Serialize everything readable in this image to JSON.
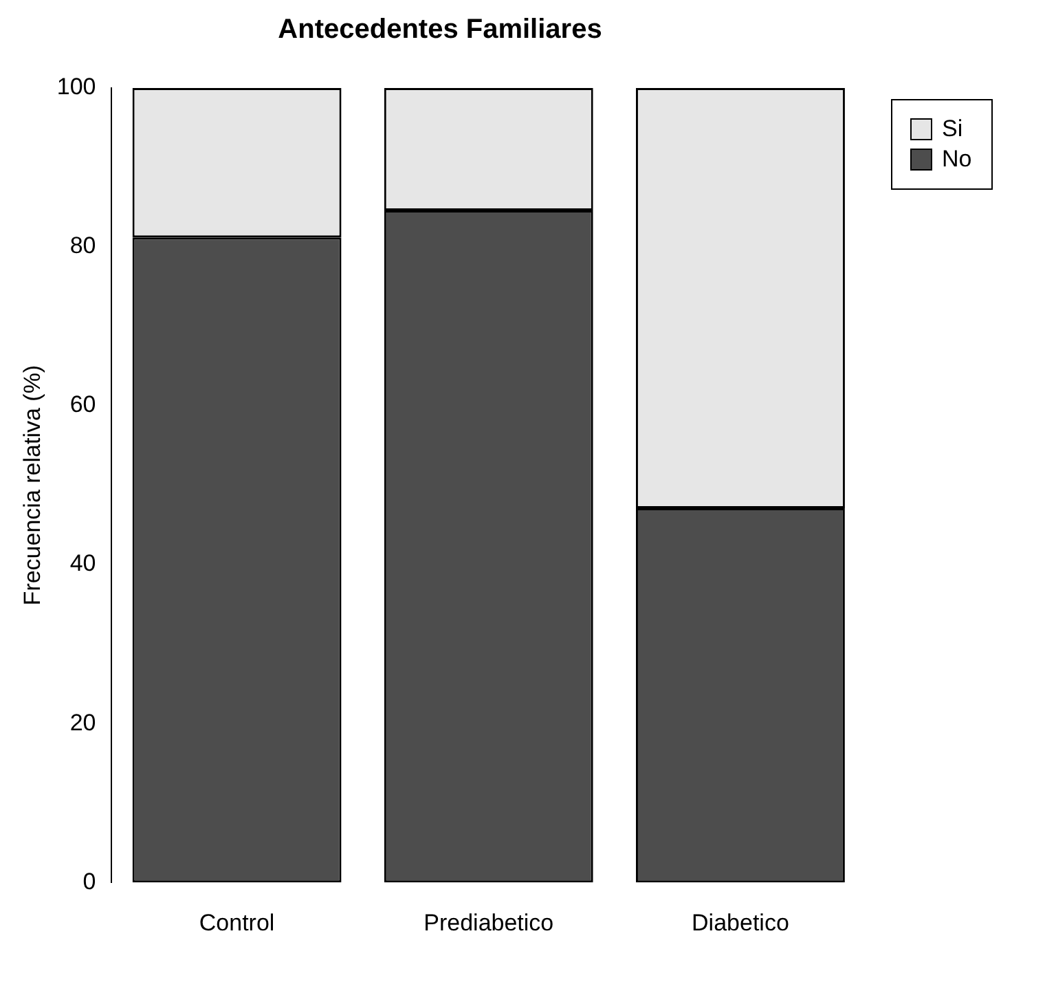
{
  "chart_data": {
    "type": "bar",
    "title": "Antecedentes Familiares",
    "ylabel": "Frecuencia relativa (%)",
    "categories": [
      "Control",
      "Prediabetico",
      "Diabetico"
    ],
    "stacked": true,
    "series": [
      {
        "name": "No",
        "color": "#4d4d4d",
        "values": [
          81.2,
          84.6,
          47.1
        ]
      },
      {
        "name": "Si",
        "color": "#e6e6e6",
        "values": [
          18.8,
          15.4,
          52.9
        ]
      }
    ],
    "ylim": [
      0,
      100
    ],
    "yticks": [
      0,
      20,
      40,
      60,
      80,
      100
    ],
    "grid": false,
    "legend": "top right"
  }
}
